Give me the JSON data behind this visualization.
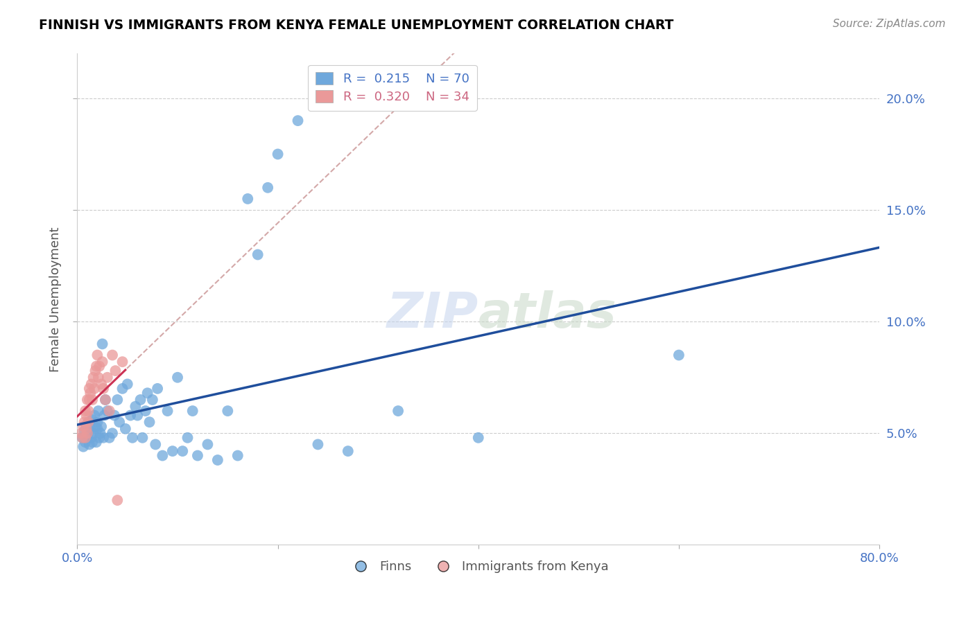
{
  "title": "FINNISH VS IMMIGRANTS FROM KENYA FEMALE UNEMPLOYMENT CORRELATION CHART",
  "source": "Source: ZipAtlas.com",
  "ylabel": "Female Unemployment",
  "watermark_zip": "ZIP",
  "watermark_atlas": "atlas",
  "finns_color": "#6fa8dc",
  "kenya_color": "#ea9999",
  "finn_line_color": "#1f4e9c",
  "kenya_solid_color": "#cc3355",
  "kenya_dash_color": "#cc9999",
  "xlim": [
    0.0,
    0.8
  ],
  "ylim": [
    0.0,
    0.22
  ],
  "finns_x": [
    0.005,
    0.006,
    0.007,
    0.008,
    0.009,
    0.01,
    0.01,
    0.011,
    0.012,
    0.013,
    0.014,
    0.015,
    0.015,
    0.016,
    0.017,
    0.018,
    0.019,
    0.02,
    0.02,
    0.021,
    0.022,
    0.023,
    0.024,
    0.025,
    0.026,
    0.027,
    0.028,
    0.03,
    0.032,
    0.035,
    0.037,
    0.04,
    0.042,
    0.045,
    0.048,
    0.05,
    0.053,
    0.055,
    0.058,
    0.06,
    0.063,
    0.065,
    0.068,
    0.07,
    0.072,
    0.075,
    0.078,
    0.08,
    0.085,
    0.09,
    0.095,
    0.1,
    0.105,
    0.11,
    0.115,
    0.12,
    0.13,
    0.14,
    0.15,
    0.16,
    0.17,
    0.18,
    0.19,
    0.2,
    0.22,
    0.24,
    0.27,
    0.32,
    0.4,
    0.6
  ],
  "finns_y": [
    0.048,
    0.044,
    0.051,
    0.046,
    0.053,
    0.049,
    0.05,
    0.055,
    0.045,
    0.052,
    0.048,
    0.056,
    0.046,
    0.05,
    0.058,
    0.053,
    0.046,
    0.055,
    0.052,
    0.06,
    0.048,
    0.05,
    0.053,
    0.09,
    0.048,
    0.058,
    0.065,
    0.06,
    0.048,
    0.05,
    0.058,
    0.065,
    0.055,
    0.07,
    0.052,
    0.072,
    0.058,
    0.048,
    0.062,
    0.058,
    0.065,
    0.048,
    0.06,
    0.068,
    0.055,
    0.065,
    0.045,
    0.07,
    0.04,
    0.06,
    0.042,
    0.075,
    0.042,
    0.048,
    0.06,
    0.04,
    0.045,
    0.038,
    0.06,
    0.04,
    0.155,
    0.13,
    0.16,
    0.175,
    0.19,
    0.045,
    0.042,
    0.06,
    0.048,
    0.085
  ],
  "kenya_x": [
    0.004,
    0.005,
    0.006,
    0.007,
    0.008,
    0.008,
    0.009,
    0.009,
    0.01,
    0.01,
    0.011,
    0.011,
    0.012,
    0.012,
    0.013,
    0.014,
    0.015,
    0.016,
    0.017,
    0.018,
    0.019,
    0.02,
    0.021,
    0.022,
    0.024,
    0.025,
    0.026,
    0.028,
    0.03,
    0.032,
    0.035,
    0.038,
    0.04,
    0.045
  ],
  "kenya_y": [
    0.05,
    0.048,
    0.053,
    0.055,
    0.048,
    0.06,
    0.052,
    0.058,
    0.05,
    0.065,
    0.055,
    0.06,
    0.07,
    0.065,
    0.068,
    0.072,
    0.065,
    0.075,
    0.07,
    0.078,
    0.08,
    0.085,
    0.075,
    0.08,
    0.072,
    0.082,
    0.07,
    0.065,
    0.075,
    0.06,
    0.085,
    0.078,
    0.02,
    0.082
  ]
}
